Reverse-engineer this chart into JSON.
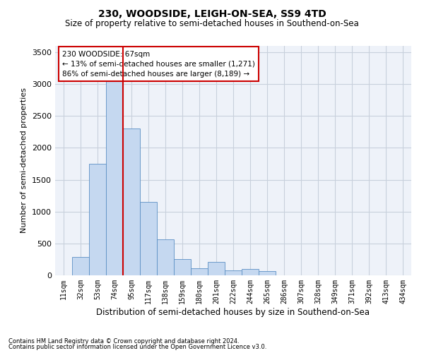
{
  "title": "230, WOODSIDE, LEIGH-ON-SEA, SS9 4TD",
  "subtitle": "Size of property relative to semi-detached houses in Southend-on-Sea",
  "xlabel": "Distribution of semi-detached houses by size in Southend-on-Sea",
  "ylabel": "Number of semi-detached properties",
  "footnote1": "Contains HM Land Registry data © Crown copyright and database right 2024.",
  "footnote2": "Contains public sector information licensed under the Open Government Licence v3.0.",
  "annotation_title": "230 WOODSIDE: 67sqm",
  "annotation_line1": "← 13% of semi-detached houses are smaller (1,271)",
  "annotation_line2": "86% of semi-detached houses are larger (8,189) →",
  "bar_color": "#c5d8f0",
  "bar_edge_color": "#5a8fc4",
  "grid_color": "#c8d0dc",
  "highlight_color": "#cc0000",
  "background_color": "#eef2f9",
  "categories": [
    "11sqm",
    "32sqm",
    "53sqm",
    "74sqm",
    "95sqm",
    "117sqm",
    "138sqm",
    "159sqm",
    "180sqm",
    "201sqm",
    "222sqm",
    "244sqm",
    "265sqm",
    "286sqm",
    "307sqm",
    "328sqm",
    "349sqm",
    "371sqm",
    "392sqm",
    "413sqm",
    "434sqm"
  ],
  "values": [
    5,
    290,
    1750,
    3250,
    2300,
    1150,
    560,
    260,
    110,
    210,
    80,
    100,
    70,
    0,
    0,
    0,
    0,
    0,
    0,
    0,
    0
  ],
  "ylim": [
    0,
    3600
  ],
  "yticks": [
    0,
    500,
    1000,
    1500,
    2000,
    2500,
    3000,
    3500
  ],
  "red_line_x": 3.5
}
